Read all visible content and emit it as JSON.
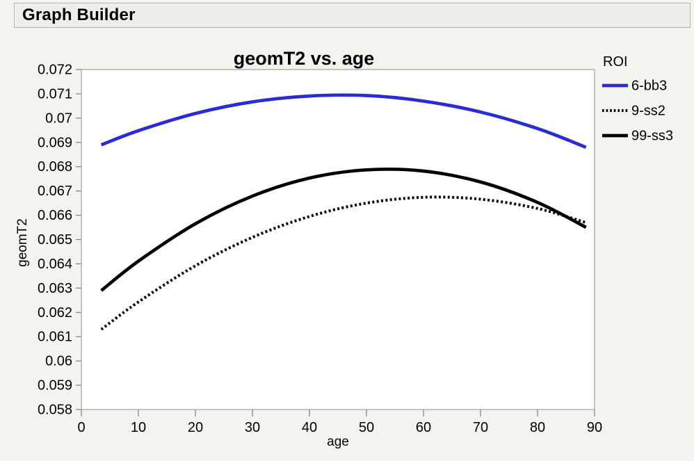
{
  "window": {
    "title": "Graph Builder"
  },
  "colors": {
    "page_background": "#f5f3ed",
    "panel_background": "#f0eee8",
    "plot_background": "#ffffff",
    "plot_frame": "#a3a19a",
    "tick": "#7f7f7f",
    "series_blue": "#2b2bd5",
    "series_black": "#000000"
  },
  "chart_data": {
    "type": "line",
    "title": "geomT2 vs. age",
    "xlabel": "age",
    "ylabel": "geomT2",
    "legend_title": "ROI",
    "legend_position": "right",
    "grid": false,
    "xlim": [
      0,
      90
    ],
    "ylim": [
      0.058,
      0.072
    ],
    "x_ticks": [
      0,
      10,
      20,
      30,
      40,
      50,
      60,
      70,
      80,
      90
    ],
    "y_tick_step": 0.001,
    "x": [
      3.5,
      10,
      20,
      30,
      40,
      50,
      60,
      70,
      80,
      88.5
    ],
    "series": [
      {
        "name": "6-bb3",
        "color": "#2b2bd5",
        "style": "solid",
        "values": [
          0.0689,
          0.06948,
          0.07019,
          0.07067,
          0.07091,
          0.07093,
          0.0707,
          0.07025,
          0.06957,
          0.0688
        ]
      },
      {
        "name": "9-ss2",
        "color": "#000000",
        "style": "dotted",
        "values": [
          0.0613,
          0.06243,
          0.06392,
          0.06509,
          0.06595,
          0.0665,
          0.06674,
          0.06666,
          0.06628,
          0.0657
        ]
      },
      {
        "name": "99-ss3",
        "color": "#000000",
        "style": "solid",
        "values": [
          0.0629,
          0.06411,
          0.06565,
          0.06679,
          0.06753,
          0.06787,
          0.06782,
          0.06737,
          0.06653,
          0.0655
        ]
      }
    ]
  }
}
